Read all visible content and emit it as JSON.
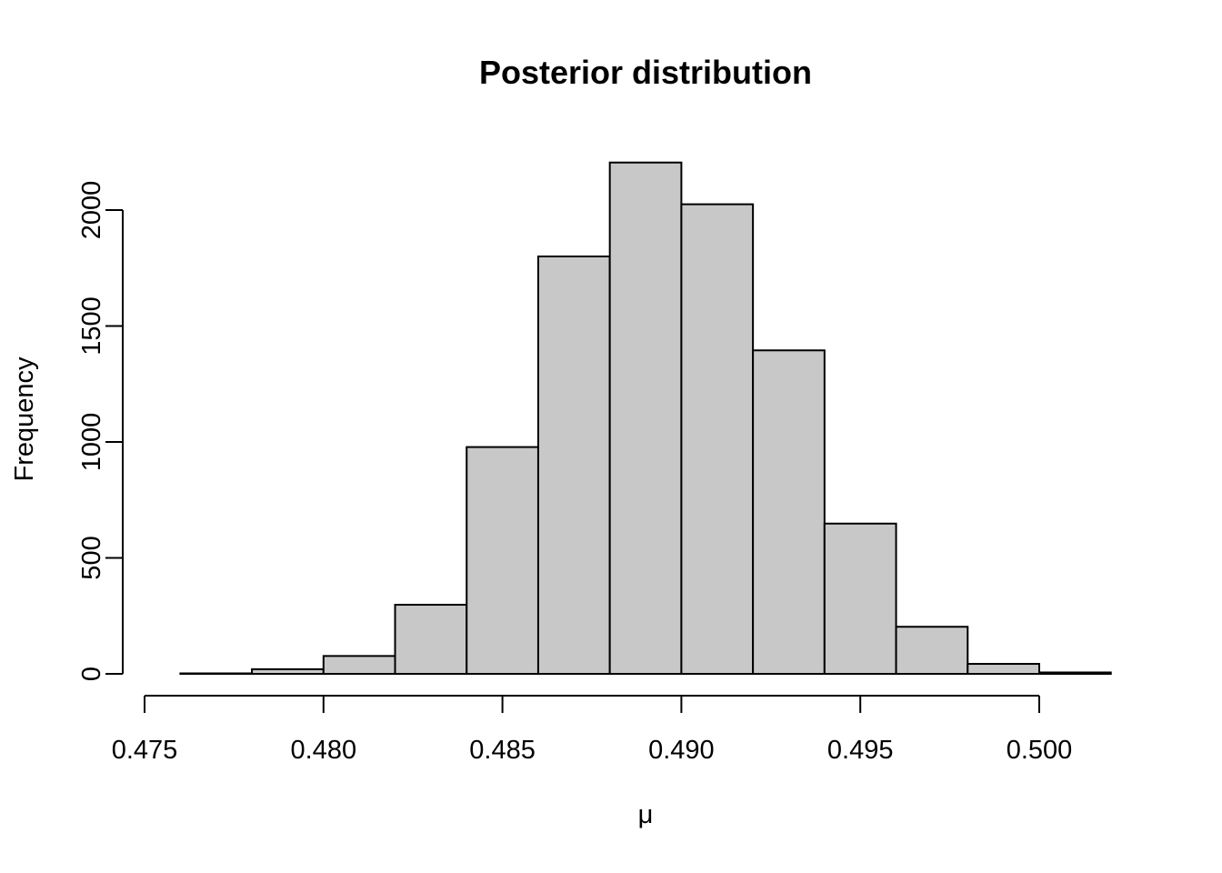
{
  "chart_data": {
    "type": "bar",
    "subtype": "histogram",
    "title": "Posterior distribution",
    "xlabel": "μ",
    "ylabel": "Frequency",
    "bin_edges": [
      0.476,
      0.478,
      0.48,
      0.482,
      0.484,
      0.486,
      0.488,
      0.49,
      0.492,
      0.494,
      0.496,
      0.498,
      0.5,
      0.502
    ],
    "values": [
      2,
      20,
      77,
      298,
      978,
      1800,
      2205,
      2025,
      1395,
      648,
      203,
      43,
      6
    ],
    "xlim": [
      0.475,
      0.502
    ],
    "ylim": [
      0,
      2205
    ],
    "x_ticks": [
      0.475,
      0.48,
      0.485,
      0.49,
      0.495,
      0.5
    ],
    "x_tick_labels": [
      "0.475",
      "0.480",
      "0.485",
      "0.490",
      "0.495",
      "0.500"
    ],
    "y_ticks": [
      0,
      500,
      1000,
      1500,
      2000
    ],
    "y_tick_labels": [
      "0",
      "500",
      "1000",
      "1500",
      "2000"
    ],
    "bar_color": "#c8c8c8",
    "edge_color": "#000000",
    "grid": false,
    "legend": "none"
  }
}
